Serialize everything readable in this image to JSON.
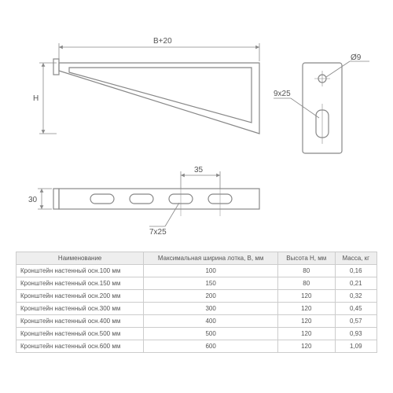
{
  "drawing": {
    "stroke": "#888888",
    "dim_stroke": "#888888",
    "fill": "#ffffff",
    "labels": {
      "B20": "B+20",
      "H": "H",
      "d9": "Ø9",
      "s9x25": "9x25",
      "thirty": "30",
      "thirtyfive": "35",
      "s7x25": "7x25"
    }
  },
  "table": {
    "headers": [
      "Наименование",
      "Максимальная ширина лотка, B, мм",
      "Высота H, мм",
      "Масса, кг"
    ],
    "rows": [
      [
        "Кронштейн настенный осн.100 мм",
        "100",
        "80",
        "0,16"
      ],
      [
        "Кронштейн настенный осн.150 мм",
        "150",
        "80",
        "0,21"
      ],
      [
        "Кронштейн настенный осн.200 мм",
        "200",
        "120",
        "0,32"
      ],
      [
        "Кронштейн настенный осн.300 мм",
        "300",
        "120",
        "0,45"
      ],
      [
        "Кронштейн настенный осн.400 мм",
        "400",
        "120",
        "0,57"
      ],
      [
        "Кронштейн настенный осн.500 мм",
        "500",
        "120",
        "0,93"
      ],
      [
        "Кронштейн настенный осн.600 мм",
        "600",
        "120",
        "1,09"
      ]
    ]
  }
}
